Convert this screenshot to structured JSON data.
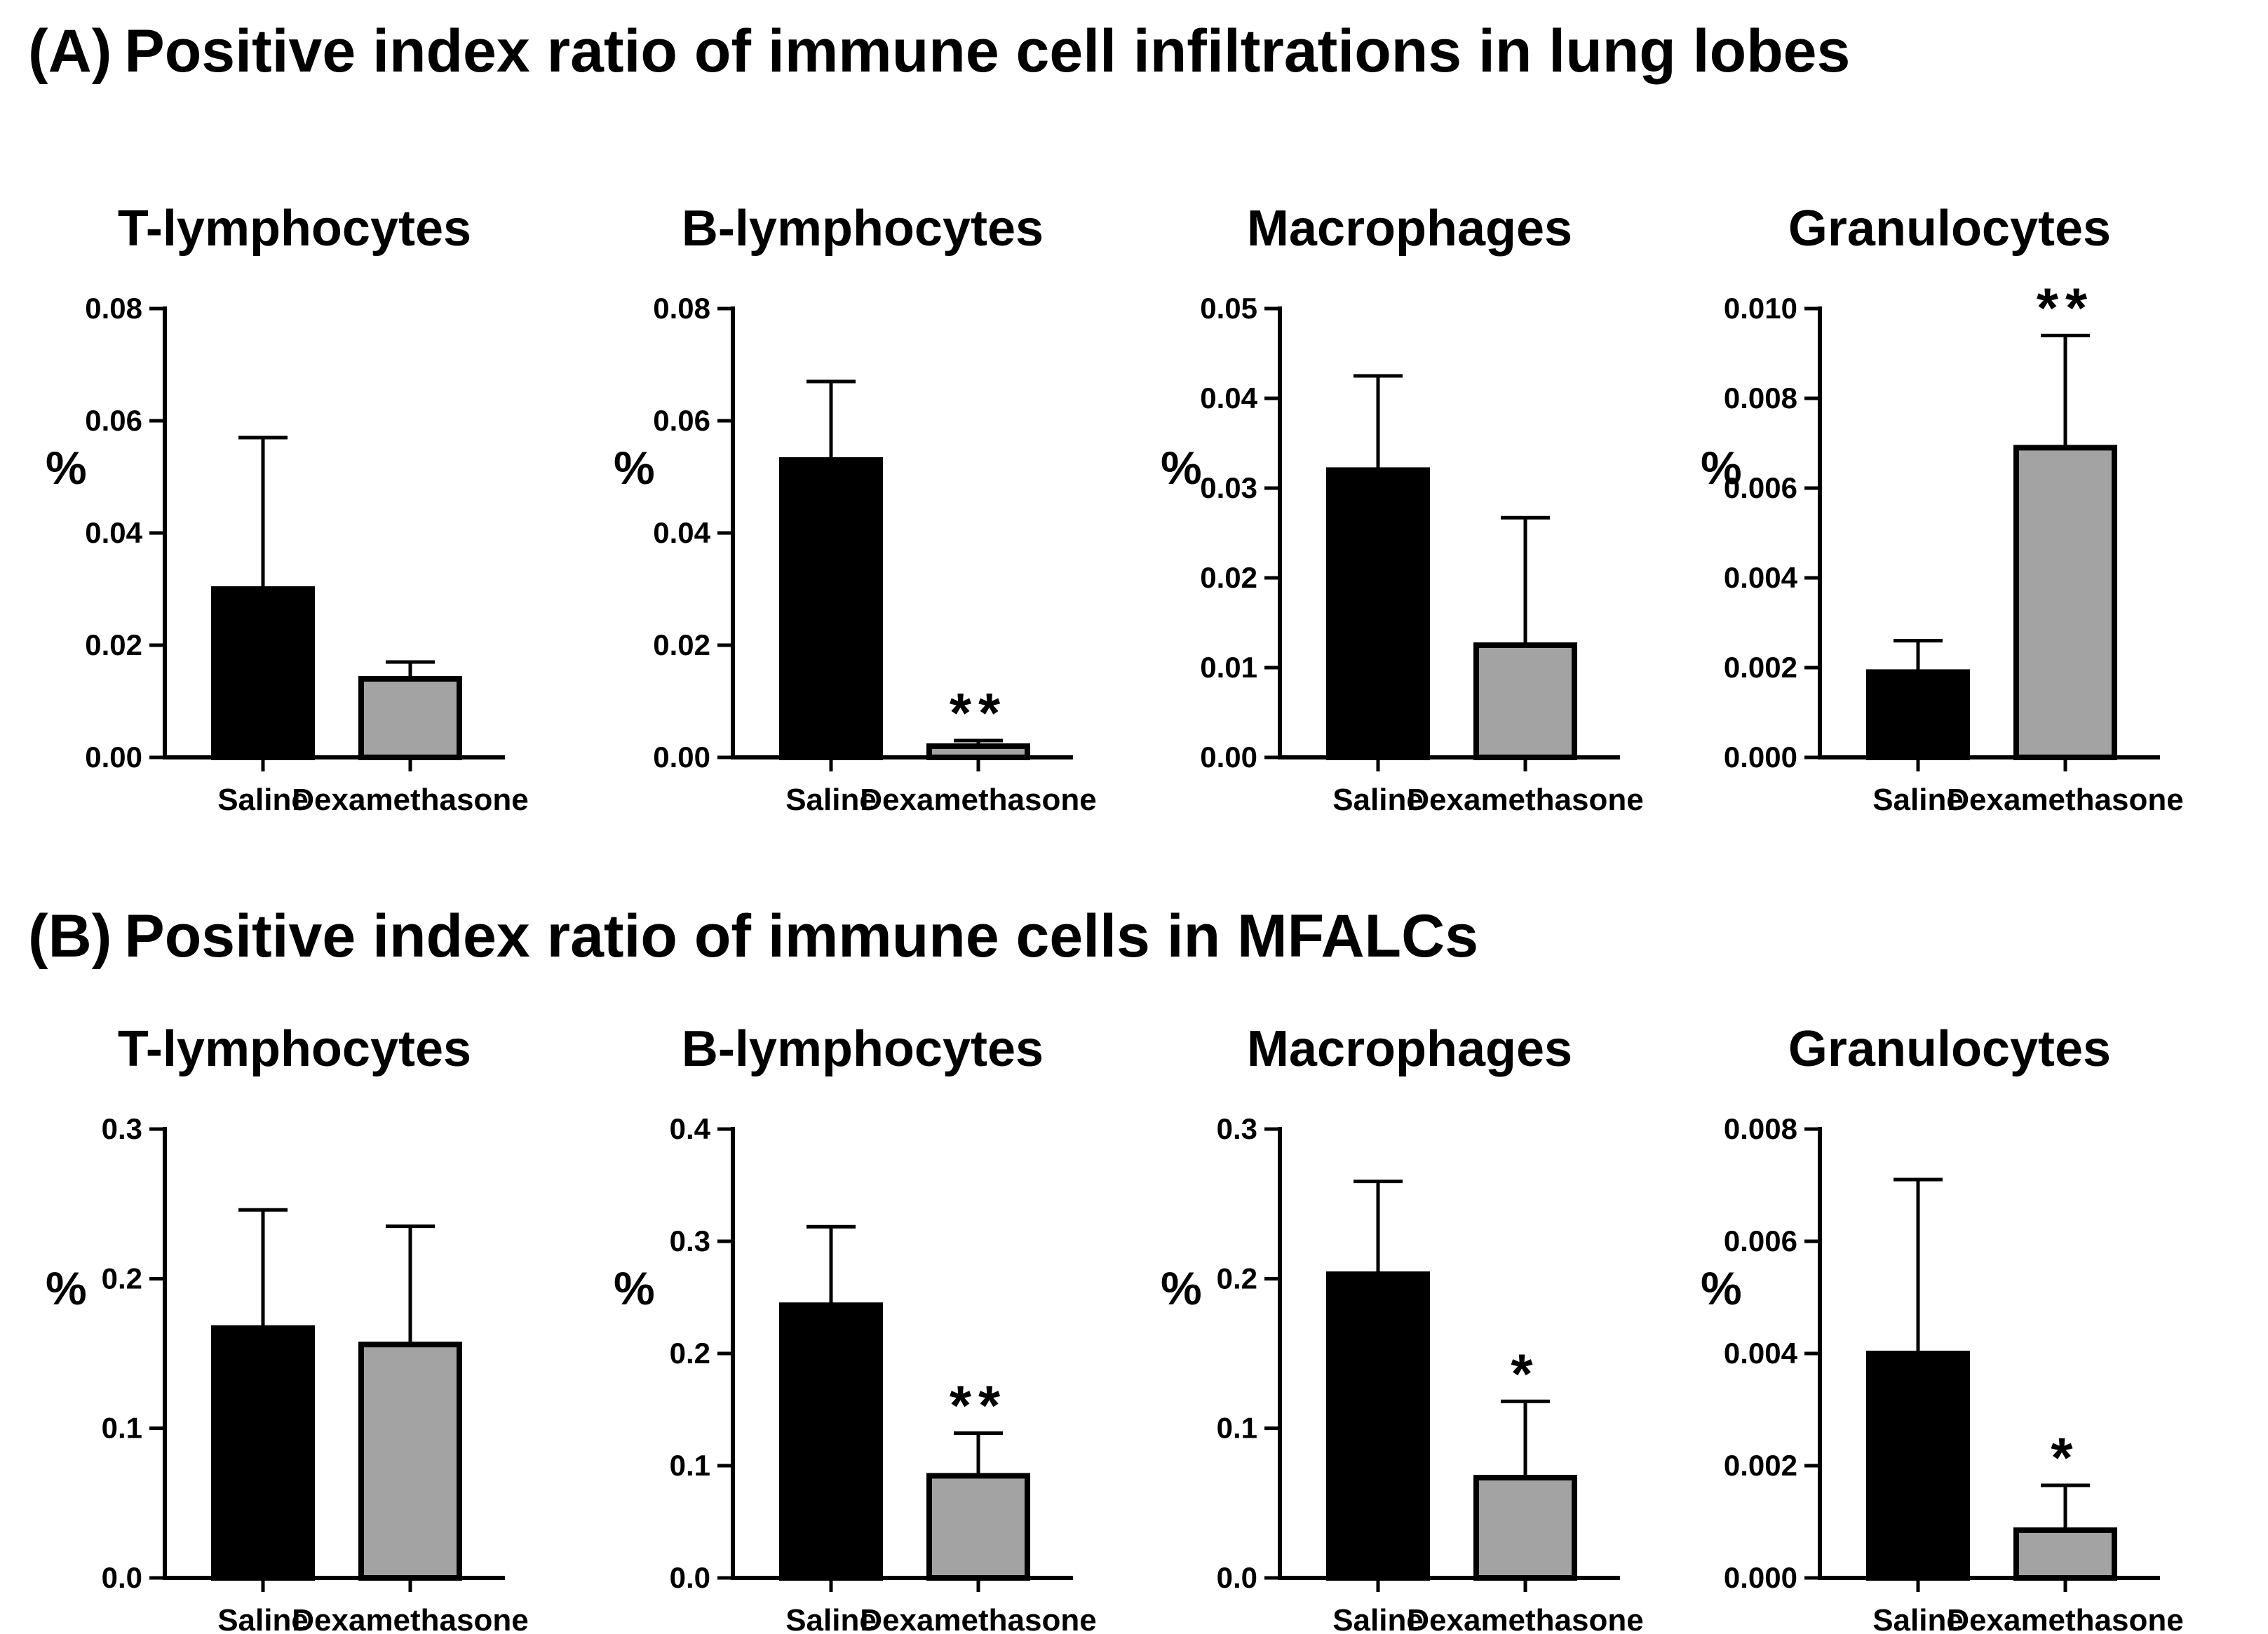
{
  "sections": [
    {
      "letter": "(A)",
      "title": "Positive index ratio of immune cell infiltrations in lung lobes"
    },
    {
      "letter": "(B)",
      "title": "Positive index ratio of immune cells in MFALCs"
    }
  ],
  "colors": {
    "saline": "#000000",
    "dexamethasone": "#a3a3a3",
    "outline": "#000000"
  },
  "chart_data": [
    {
      "panel": "A1",
      "type": "bar",
      "title": "T-lymphocytes",
      "ylabel": "%",
      "categories": [
        "Saline",
        "Dexamethasone"
      ],
      "values": [
        0.03,
        0.014
      ],
      "error_upper": [
        0.057,
        0.017
      ],
      "significance": [
        "",
        ""
      ],
      "ylim": [
        0,
        0.08
      ],
      "yticks": [
        "0.00",
        "0.02",
        "0.04",
        "0.06",
        "0.08"
      ],
      "grid": false
    },
    {
      "panel": "A2",
      "type": "bar",
      "title": "B-lymphocytes",
      "ylabel": "%",
      "categories": [
        "Saline",
        "Dexamethasone"
      ],
      "values": [
        0.053,
        0.002
      ],
      "error_upper": [
        0.067,
        0.003
      ],
      "significance": [
        "",
        "**"
      ],
      "ylim": [
        0,
        0.08
      ],
      "yticks": [
        "0.00",
        "0.02",
        "0.04",
        "0.06",
        "0.08"
      ],
      "grid": false
    },
    {
      "panel": "A3",
      "type": "bar",
      "title": "Macrophages",
      "ylabel": "%",
      "categories": [
        "Saline",
        "Dexamethasone"
      ],
      "values": [
        0.032,
        0.0125
      ],
      "error_upper": [
        0.0425,
        0.0267
      ],
      "significance": [
        "",
        ""
      ],
      "ylim": [
        0,
        0.05
      ],
      "yticks": [
        "0.00",
        "0.01",
        "0.02",
        "0.03",
        "0.04",
        "0.05"
      ],
      "grid": false
    },
    {
      "panel": "A4",
      "type": "bar",
      "title": "Granulocytes",
      "ylabel": "%",
      "categories": [
        "Saline",
        "Dexamethasone"
      ],
      "values": [
        0.0019,
        0.0069
      ],
      "error_upper": [
        0.0026,
        0.0094
      ],
      "significance": [
        "",
        "**"
      ],
      "ylim": [
        0,
        0.01
      ],
      "yticks": [
        "0.000",
        "0.002",
        "0.004",
        "0.006",
        "0.008",
        "0.010"
      ],
      "grid": false
    },
    {
      "panel": "B1",
      "type": "bar",
      "title": "T-lymphocytes",
      "ylabel": "%",
      "categories": [
        "Saline",
        "Dexamethasone"
      ],
      "values": [
        0.167,
        0.156
      ],
      "error_upper": [
        0.246,
        0.235
      ],
      "significance": [
        "",
        ""
      ],
      "ylim": [
        0,
        0.3
      ],
      "yticks": [
        "0.0",
        "0.1",
        "0.2",
        "0.3"
      ],
      "grid": false
    },
    {
      "panel": "B2",
      "type": "bar",
      "title": "B-lymphocytes",
      "ylabel": "%",
      "categories": [
        "Saline",
        "Dexamethasone"
      ],
      "values": [
        0.243,
        0.091
      ],
      "error_upper": [
        0.313,
        0.129
      ],
      "significance": [
        "",
        "**"
      ],
      "ylim": [
        0,
        0.4
      ],
      "yticks": [
        "0.0",
        "0.1",
        "0.2",
        "0.3",
        "0.4"
      ],
      "grid": false
    },
    {
      "panel": "B3",
      "type": "bar",
      "title": "Macrophages",
      "ylabel": "%",
      "categories": [
        "Saline",
        "Dexamethasone"
      ],
      "values": [
        0.203,
        0.067
      ],
      "error_upper": [
        0.265,
        0.118
      ],
      "significance": [
        "",
        "*"
      ],
      "ylim": [
        0,
        0.3
      ],
      "yticks": [
        "0.0",
        "0.1",
        "0.2",
        "0.3"
      ],
      "grid": false
    },
    {
      "panel": "B4",
      "type": "bar",
      "title": "Granulocytes",
      "ylabel": "%",
      "categories": [
        "Saline",
        "Dexamethasone"
      ],
      "values": [
        0.004,
        0.00085
      ],
      "error_upper": [
        0.0071,
        0.00165
      ],
      "significance": [
        "",
        "*"
      ],
      "ylim": [
        0,
        0.008
      ],
      "yticks": [
        "0.000",
        "0.002",
        "0.004",
        "0.006",
        "0.008"
      ],
      "grid": false
    }
  ]
}
